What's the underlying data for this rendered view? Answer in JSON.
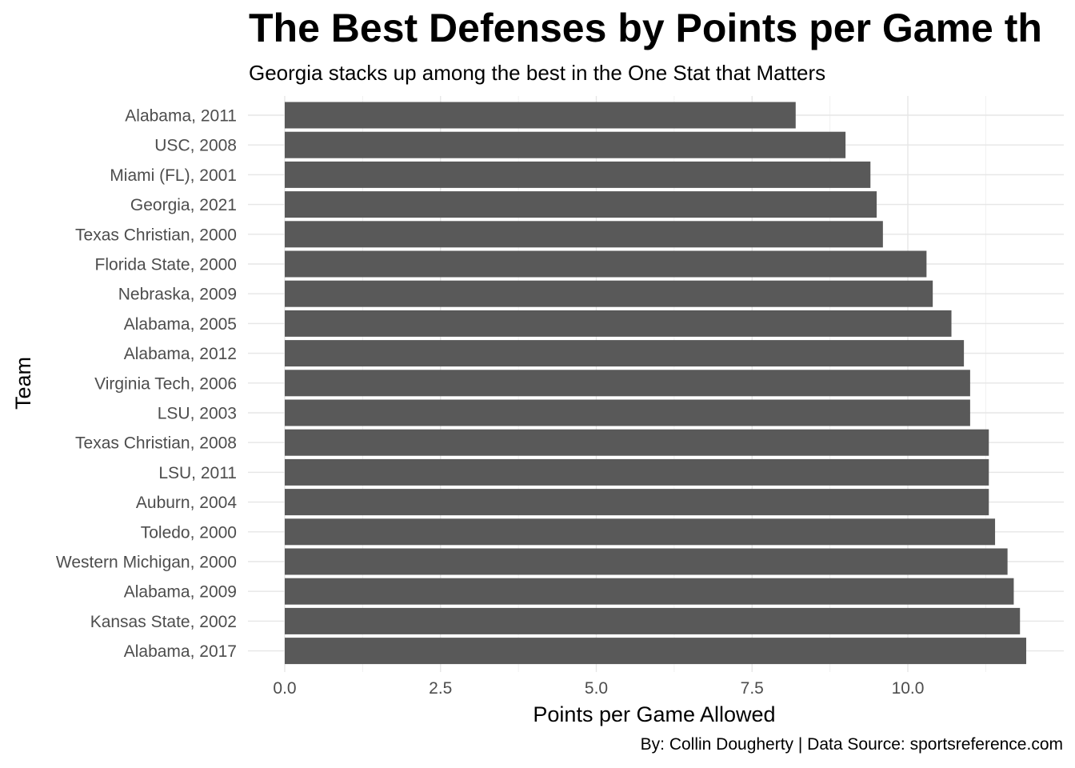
{
  "chart_data": {
    "type": "bar",
    "orientation": "horizontal",
    "title": "The Best Defenses by Points per Game th",
    "subtitle": "Georgia stacks up among the best in the One Stat that Matters",
    "caption": "By: Collin Dougherty | Data Source: sportsreference.com",
    "xlabel": "Points per Game Allowed",
    "ylabel": "Team",
    "xlim": [
      0,
      12.5
    ],
    "x_ticks": [
      "0.0",
      "2.5",
      "5.0",
      "7.5",
      "10.0"
    ],
    "x_tick_values": [
      0,
      2.5,
      5,
      7.5,
      10
    ],
    "grid": true,
    "bar_color": "#595959",
    "categories": [
      "Alabama, 2011",
      "USC, 2008",
      "Miami (FL), 2001",
      "Georgia, 2021",
      "Texas Christian, 2000",
      "Florida State, 2000",
      "Nebraska, 2009",
      "Alabama, 2005",
      "Alabama, 2012",
      "Virginia Tech, 2006",
      "LSU, 2003",
      "Texas Christian, 2008",
      "LSU, 2011",
      "Auburn, 2004",
      "Toledo, 2000",
      "Western Michigan, 2000",
      "Alabama, 2009",
      "Kansas State, 2002",
      "Alabama, 2017"
    ],
    "values": [
      8.2,
      9.0,
      9.4,
      9.5,
      9.6,
      10.3,
      10.4,
      10.7,
      10.9,
      11.0,
      11.0,
      11.3,
      11.3,
      11.3,
      11.4,
      11.6,
      11.7,
      11.8,
      11.9
    ]
  }
}
